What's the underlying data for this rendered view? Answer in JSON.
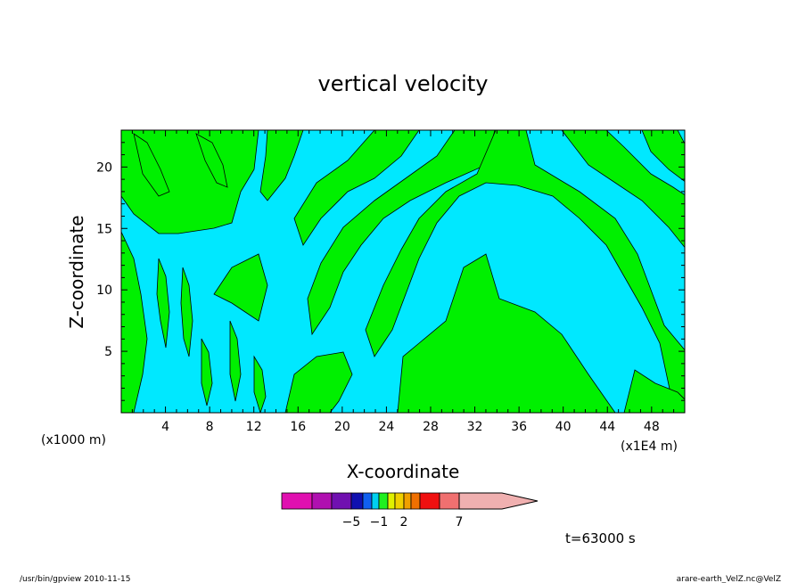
{
  "chart_data": {
    "type": "heatmap",
    "title": "vertical velocity",
    "xlabel": "X-coordinate",
    "ylabel": "Z-coordinate",
    "x_unit_left": "(x1000 m)",
    "x_unit_right": "(x1E4 m)",
    "xlim": [
      0,
      51
    ],
    "ylim": [
      0,
      23
    ],
    "x_ticks": [
      4,
      8,
      12,
      16,
      20,
      24,
      28,
      32,
      36,
      40,
      44,
      48
    ],
    "y_ticks": [
      5,
      10,
      15,
      20
    ],
    "colorbar": {
      "colors": [
        "#e010b0",
        "#b010b0",
        "#7010b0",
        "#1010b0",
        "#1060f0",
        "#00d0f0",
        "#20f020",
        "#e0f000",
        "#f0d000",
        "#f0a000",
        "#f07000",
        "#f01010",
        "#f07070",
        "#f0b0b0"
      ],
      "labels": [
        {
          "text": "−5",
          "value": -5
        },
        {
          "text": "−1",
          "value": -1
        },
        {
          "text": "2",
          "value": 2
        },
        {
          "text": "7",
          "value": 7
        }
      ]
    },
    "field_colors": {
      "negative": "#00e8ff",
      "positive": "#00f000"
    },
    "time_label": "t=63000 s"
  },
  "footer": {
    "left": "/usr/bin/gpview   2010-11-15",
    "right": "arare-earth_VelZ.nc@VelZ"
  }
}
